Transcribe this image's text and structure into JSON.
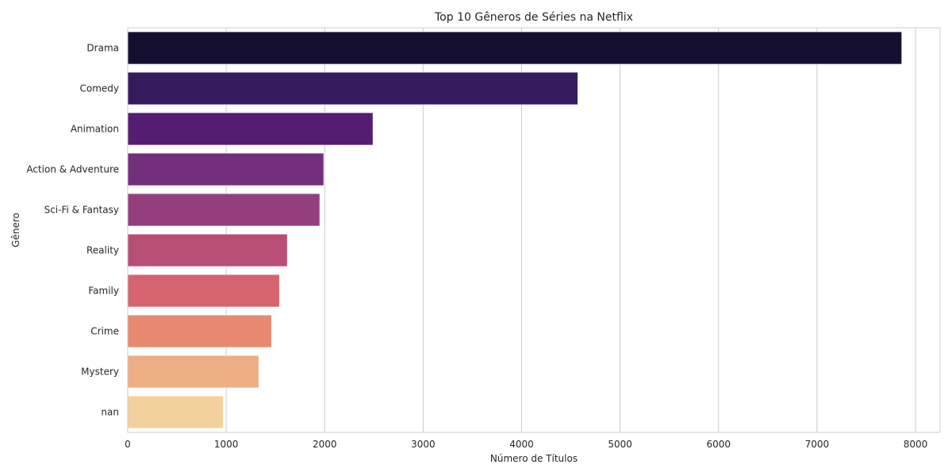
{
  "chart_data": {
    "type": "bar",
    "orientation": "horizontal",
    "title": "Top 10 Gêneros de Séries na Netflix",
    "xlabel": "Número de Títulos",
    "ylabel": "Gênero",
    "xlim": [
      0,
      8250
    ],
    "xticks": [
      0,
      1000,
      2000,
      3000,
      4000,
      5000,
      6000,
      7000,
      8000
    ],
    "grid": "vertical",
    "legend": "none",
    "categories": [
      "Drama",
      "Comedy",
      "Animation",
      "Action & Adventure",
      "Sci-Fi & Fantasy",
      "Reality",
      "Family",
      "Crime",
      "Mystery",
      "nan"
    ],
    "values": [
      7860,
      4570,
      2490,
      1990,
      1950,
      1620,
      1540,
      1460,
      1330,
      970
    ],
    "colors": [
      "#140f30",
      "#351a5e",
      "#551d72",
      "#742f7c",
      "#933f7d",
      "#b94e75",
      "#d6646f",
      "#e88a70",
      "#edae83",
      "#f2d19c"
    ]
  }
}
